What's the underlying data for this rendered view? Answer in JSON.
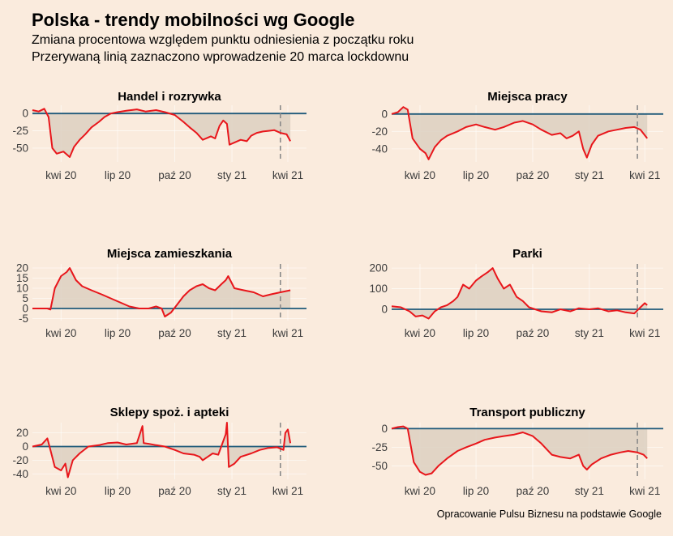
{
  "title": "Polska - trendy mobilności wg Google",
  "subtitle1": "Zmiana procentowa względem punktu odniesienia z początku roku",
  "subtitle2": "Przerywaną linią zaznaczono wprowadzenie 20 marca lockdownu",
  "caption": "Opracowanie Pulsu Biznesu na podstawie Google",
  "colors": {
    "background": "#FAEBDD",
    "line": "#E8161B",
    "zero": "#1F5A7A",
    "area": "#DCD0C1",
    "dashed": "#8a8a8a"
  },
  "chart_data": [
    {
      "type": "area",
      "title": "Handel i rozrywka",
      "xlim": [
        "2020-02-15",
        "2021-05-01"
      ],
      "ylim": [
        -70,
        12
      ],
      "yticks": [
        0,
        -25,
        -50
      ],
      "xticks": [
        {
          "date": "2020-04-01",
          "label": "kwi 20"
        },
        {
          "date": "2020-07-01",
          "label": "lip 20"
        },
        {
          "date": "2020-10-01",
          "label": "paź 20"
        },
        {
          "date": "2021-01-01",
          "label": "sty 21"
        },
        {
          "date": "2021-04-01",
          "label": "kwi 21"
        }
      ],
      "vline": "2021-03-20",
      "series": [
        {
          "x": [
            "2020-02-15",
            "2020-02-25",
            "2020-03-05",
            "2020-03-12",
            "2020-03-18",
            "2020-03-25",
            "2020-04-05",
            "2020-04-15",
            "2020-04-22",
            "2020-05-01",
            "2020-05-10",
            "2020-05-20",
            "2020-06-01",
            "2020-06-10",
            "2020-06-20",
            "2020-07-01",
            "2020-07-15",
            "2020-08-01",
            "2020-08-15",
            "2020-09-01",
            "2020-09-15",
            "2020-10-01",
            "2020-10-15",
            "2020-10-25",
            "2020-11-05",
            "2020-11-15",
            "2020-11-28",
            "2020-12-05",
            "2020-12-12",
            "2020-12-18",
            "2020-12-24",
            "2020-12-28",
            "2021-01-05",
            "2021-01-15",
            "2021-01-25",
            "2021-02-01",
            "2021-02-10",
            "2021-02-20",
            "2021-03-01",
            "2021-03-10",
            "2021-03-20",
            "2021-03-30",
            "2021-04-05"
          ],
          "y": [
            5,
            3,
            7,
            -5,
            -50,
            -58,
            -55,
            -63,
            -48,
            -38,
            -30,
            -20,
            -12,
            -5,
            0,
            2,
            4,
            6,
            3,
            5,
            2,
            -2,
            -12,
            -20,
            -28,
            -38,
            -33,
            -36,
            -18,
            -10,
            -15,
            -45,
            -42,
            -38,
            -40,
            -32,
            -28,
            -26,
            -25,
            -24,
            -28,
            -30,
            -40
          ]
        }
      ]
    },
    {
      "type": "area",
      "title": "Miejsca pracy",
      "xlim": [
        "2020-02-15",
        "2021-05-01"
      ],
      "ylim": [
        -55,
        10
      ],
      "yticks": [
        0,
        -20,
        -40
      ],
      "xticks": [
        {
          "date": "2020-04-01",
          "label": "kwi 20"
        },
        {
          "date": "2020-07-01",
          "label": "lip 20"
        },
        {
          "date": "2020-10-01",
          "label": "paź 20"
        },
        {
          "date": "2021-01-01",
          "label": "sty 21"
        },
        {
          "date": "2021-04-01",
          "label": "kwi 21"
        }
      ],
      "vline": "2021-03-20",
      "series": [
        {
          "x": [
            "2020-02-15",
            "2020-02-25",
            "2020-03-05",
            "2020-03-12",
            "2020-03-20",
            "2020-04-01",
            "2020-04-10",
            "2020-04-15",
            "2020-04-25",
            "2020-05-05",
            "2020-05-15",
            "2020-06-01",
            "2020-06-15",
            "2020-07-01",
            "2020-07-15",
            "2020-08-01",
            "2020-08-15",
            "2020-09-01",
            "2020-09-15",
            "2020-10-01",
            "2020-10-15",
            "2020-11-01",
            "2020-11-15",
            "2020-11-25",
            "2020-12-05",
            "2020-12-15",
            "2020-12-22",
            "2020-12-28",
            "2021-01-05",
            "2021-01-15",
            "2021-02-01",
            "2021-02-15",
            "2021-03-01",
            "2021-03-15",
            "2021-03-25",
            "2021-04-05"
          ],
          "y": [
            0,
            2,
            8,
            5,
            -28,
            -40,
            -45,
            -52,
            -38,
            -30,
            -25,
            -20,
            -15,
            -12,
            -15,
            -18,
            -15,
            -10,
            -8,
            -12,
            -18,
            -24,
            -22,
            -28,
            -25,
            -20,
            -40,
            -50,
            -35,
            -25,
            -20,
            -18,
            -16,
            -15,
            -18,
            -28
          ]
        }
      ]
    },
    {
      "type": "area",
      "title": "Miejsca zamieszkania",
      "xlim": [
        "2020-02-15",
        "2021-05-01"
      ],
      "ylim": [
        -6,
        22
      ],
      "yticks": [
        20,
        15,
        10,
        5,
        0,
        -5
      ],
      "xticks": [
        {
          "date": "2020-04-01",
          "label": "kwi 20"
        },
        {
          "date": "2020-07-01",
          "label": "lip 20"
        },
        {
          "date": "2020-10-01",
          "label": "paź 20"
        },
        {
          "date": "2021-01-01",
          "label": "sty 21"
        },
        {
          "date": "2021-04-01",
          "label": "kwi 21"
        }
      ],
      "vline": "2021-03-20",
      "series": [
        {
          "x": [
            "2020-02-15",
            "2020-03-01",
            "2020-03-10",
            "2020-03-15",
            "2020-03-22",
            "2020-04-01",
            "2020-04-10",
            "2020-04-15",
            "2020-04-25",
            "2020-05-05",
            "2020-05-20",
            "2020-06-05",
            "2020-06-20",
            "2020-07-05",
            "2020-07-20",
            "2020-08-05",
            "2020-08-20",
            "2020-09-01",
            "2020-09-10",
            "2020-09-15",
            "2020-09-25",
            "2020-10-05",
            "2020-10-15",
            "2020-10-25",
            "2020-11-05",
            "2020-11-15",
            "2020-11-25",
            "2020-12-05",
            "2020-12-15",
            "2020-12-22",
            "2020-12-26",
            "2021-01-05",
            "2021-01-20",
            "2021-02-05",
            "2021-02-20",
            "2021-03-05",
            "2021-03-20",
            "2021-04-05"
          ],
          "y": [
            0,
            0,
            0,
            -0.5,
            10,
            16,
            18,
            20,
            14,
            11,
            9,
            7,
            5,
            3,
            1,
            0,
            0,
            1,
            0,
            -4,
            -2,
            2,
            6,
            9,
            11,
            12,
            10,
            9,
            12,
            14,
            16,
            10,
            9,
            8,
            6,
            7,
            8,
            9
          ]
        }
      ]
    },
    {
      "type": "area",
      "title": "Parki",
      "xlim": [
        "2020-02-15",
        "2021-05-01"
      ],
      "ylim": [
        -55,
        220
      ],
      "yticks": [
        200,
        100,
        0
      ],
      "xticks": [
        {
          "date": "2020-04-01",
          "label": "kwi 20"
        },
        {
          "date": "2020-07-01",
          "label": "lip 20"
        },
        {
          "date": "2020-10-01",
          "label": "paź 20"
        },
        {
          "date": "2021-01-01",
          "label": "sty 21"
        },
        {
          "date": "2021-04-01",
          "label": "kwi 21"
        }
      ],
      "vline": "2021-03-20",
      "series": [
        {
          "x": [
            "2020-02-15",
            "2020-03-01",
            "2020-03-15",
            "2020-03-25",
            "2020-04-05",
            "2020-04-15",
            "2020-04-25",
            "2020-05-05",
            "2020-05-15",
            "2020-05-25",
            "2020-06-01",
            "2020-06-10",
            "2020-06-20",
            "2020-07-01",
            "2020-07-10",
            "2020-07-20",
            "2020-07-28",
            "2020-08-05",
            "2020-08-15",
            "2020-08-25",
            "2020-09-05",
            "2020-09-15",
            "2020-09-25",
            "2020-10-05",
            "2020-10-15",
            "2020-11-01",
            "2020-11-15",
            "2020-12-01",
            "2020-12-15",
            "2021-01-01",
            "2021-01-15",
            "2021-02-01",
            "2021-02-15",
            "2021-03-01",
            "2021-03-15",
            "2021-03-25",
            "2021-04-01",
            "2021-04-05"
          ],
          "y": [
            15,
            10,
            -10,
            -35,
            -30,
            -45,
            -10,
            10,
            20,
            40,
            60,
            120,
            100,
            140,
            160,
            180,
            200,
            150,
            100,
            120,
            60,
            40,
            10,
            0,
            -10,
            -15,
            0,
            -10,
            5,
            0,
            5,
            -10,
            -5,
            -15,
            -20,
            10,
            30,
            20
          ]
        }
      ]
    },
    {
      "type": "area",
      "title": "Sklepy spoż. i apteki",
      "xlim": [
        "2020-02-15",
        "2021-05-01"
      ],
      "ylim": [
        -48,
        35
      ],
      "yticks": [
        20,
        0,
        -20,
        -40
      ],
      "xticks": [
        {
          "date": "2020-04-01",
          "label": "kwi 20"
        },
        {
          "date": "2020-07-01",
          "label": "lip 20"
        },
        {
          "date": "2020-10-01",
          "label": "paź 20"
        },
        {
          "date": "2021-01-01",
          "label": "sty 21"
        },
        {
          "date": "2021-04-01",
          "label": "kwi 21"
        }
      ],
      "vline": "2021-03-20",
      "series": [
        {
          "x": [
            "2020-02-15",
            "2020-03-01",
            "2020-03-10",
            "2020-03-15",
            "2020-03-22",
            "2020-04-01",
            "2020-04-08",
            "2020-04-12",
            "2020-04-20",
            "2020-05-01",
            "2020-05-15",
            "2020-06-01",
            "2020-06-15",
            "2020-07-01",
            "2020-07-15",
            "2020-08-01",
            "2020-08-10",
            "2020-08-12",
            "2020-08-20",
            "2020-09-01",
            "2020-09-15",
            "2020-10-01",
            "2020-10-15",
            "2020-11-01",
            "2020-11-10",
            "2020-11-15",
            "2020-12-01",
            "2020-12-10",
            "2020-12-18",
            "2020-12-22",
            "2020-12-24",
            "2020-12-27",
            "2021-01-05",
            "2021-01-15",
            "2021-02-01",
            "2021-02-15",
            "2021-03-01",
            "2021-03-15",
            "2021-03-25",
            "2021-03-28",
            "2021-04-01",
            "2021-04-05"
          ],
          "y": [
            0,
            3,
            12,
            -5,
            -30,
            -35,
            -25,
            -45,
            -20,
            -10,
            0,
            2,
            5,
            6,
            3,
            5,
            30,
            5,
            4,
            2,
            0,
            -5,
            -10,
            -12,
            -15,
            -20,
            -10,
            -12,
            8,
            18,
            35,
            -30,
            -25,
            -15,
            -10,
            -5,
            -2,
            -1,
            -5,
            20,
            25,
            5
          ]
        }
      ]
    },
    {
      "type": "area",
      "title": "Transport publiczny",
      "xlim": [
        "2020-02-15",
        "2021-05-01"
      ],
      "ylim": [
        -68,
        8
      ],
      "yticks": [
        0,
        -25,
        -50
      ],
      "xticks": [
        {
          "date": "2020-04-01",
          "label": "kwi 20"
        },
        {
          "date": "2020-07-01",
          "label": "lip 20"
        },
        {
          "date": "2020-10-01",
          "label": "paź 20"
        },
        {
          "date": "2021-01-01",
          "label": "sty 21"
        },
        {
          "date": "2021-04-01",
          "label": "kwi 21"
        }
      ],
      "vline": "2021-03-20",
      "series": [
        {
          "x": [
            "2020-02-15",
            "2020-02-25",
            "2020-03-05",
            "2020-03-12",
            "2020-03-22",
            "2020-04-01",
            "2020-04-10",
            "2020-04-20",
            "2020-05-01",
            "2020-05-15",
            "2020-06-01",
            "2020-06-15",
            "2020-07-01",
            "2020-07-15",
            "2020-08-01",
            "2020-08-15",
            "2020-09-01",
            "2020-09-15",
            "2020-10-01",
            "2020-10-15",
            "2020-11-01",
            "2020-11-15",
            "2020-12-01",
            "2020-12-15",
            "2020-12-22",
            "2020-12-28",
            "2021-01-05",
            "2021-01-20",
            "2021-02-05",
            "2021-02-20",
            "2021-03-05",
            "2021-03-20",
            "2021-03-30",
            "2021-04-05"
          ],
          "y": [
            0,
            2,
            3,
            0,
            -45,
            -58,
            -62,
            -60,
            -50,
            -40,
            -30,
            -25,
            -20,
            -15,
            -12,
            -10,
            -8,
            -5,
            -10,
            -20,
            -35,
            -38,
            -40,
            -35,
            -50,
            -55,
            -48,
            -40,
            -35,
            -32,
            -30,
            -32,
            -35,
            -40
          ]
        }
      ]
    }
  ]
}
